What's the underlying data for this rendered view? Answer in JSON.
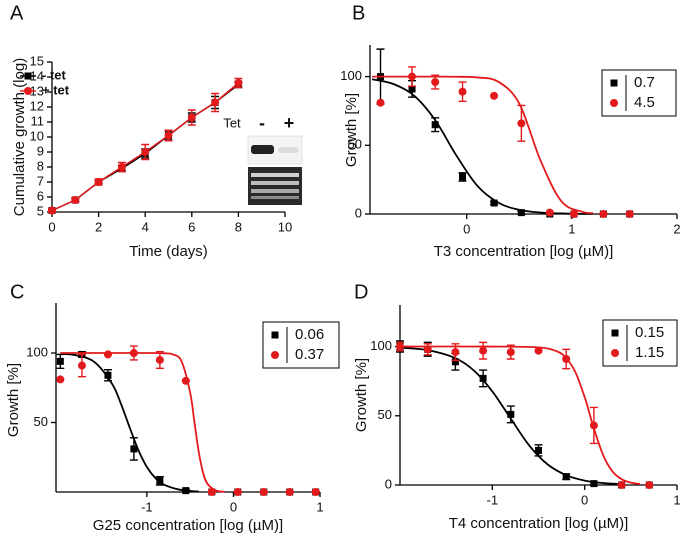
{
  "chart_data": [
    {
      "type": "line",
      "panel_label": "A",
      "x_label": "Time (days)",
      "y_label": "Cumulative growth (log)",
      "xlim": [
        0,
        10
      ],
      "xticks": [
        0,
        2,
        4,
        6,
        8,
        10
      ],
      "ylim": [
        5,
        15
      ],
      "yticks": [
        5,
        6,
        7,
        8,
        9,
        10,
        11,
        12,
        13,
        14,
        15
      ],
      "legend": "upper left",
      "annotations": [
        "Tet",
        "-",
        "+"
      ],
      "x": [
        0,
        1,
        2,
        3,
        4,
        5,
        6,
        7,
        8
      ],
      "series": [
        {
          "name": "-  tet",
          "color": "#000000",
          "marker": "square",
          "values": [
            5.1,
            5.8,
            7.0,
            7.9,
            8.9,
            10.1,
            11.3,
            12.3,
            13.5
          ],
          "errors": [
            0.1,
            0.1,
            0.1,
            0.2,
            0.3,
            0.3,
            0.3,
            0.4,
            0.2
          ]
        },
        {
          "name": "+ tet",
          "color": "#e31a1c",
          "marker": "circle",
          "values": [
            5.1,
            5.8,
            7.0,
            8.0,
            9.0,
            10.1,
            11.3,
            12.3,
            13.6
          ],
          "errors": [
            0.1,
            0.15,
            0.2,
            0.3,
            0.5,
            0.35,
            0.5,
            0.6,
            0.3
          ]
        }
      ]
    },
    {
      "type": "scatter",
      "panel_label": "B",
      "x_label": "T3 concentration [log (µM)]",
      "y_label": "Growth [%]",
      "xlim": [
        -0.92,
        2
      ],
      "xticks": [
        0,
        1,
        2
      ],
      "ylim": [
        0,
        123
      ],
      "yticks": [
        0,
        50,
        100
      ],
      "legend": "upper right",
      "x": [
        -0.82,
        -0.52,
        -0.3,
        -0.04,
        0.26,
        0.52,
        0.79,
        1.02,
        1.3,
        1.55
      ],
      "series": [
        {
          "name": "0.7",
          "color": "#000000",
          "marker": "square",
          "values": [
            100,
            91,
            65,
            27,
            8,
            1,
            0,
            0,
            0,
            0
          ],
          "errors": [
            20,
            6,
            5,
            3,
            1,
            1,
            0,
            0,
            0,
            0
          ],
          "fit": {
            "x": [
              -0.9,
              -0.7,
              -0.5,
              -0.3,
              -0.1,
              0.1,
              0.3,
              0.5,
              0.7,
              0.9,
              1.1,
              1.2
            ],
            "values": [
              98.1,
              94.7,
              86.1,
              68.3,
              42.8,
              20.6,
              8.3,
              3.0,
              1.1,
              0.4,
              0.1,
              0.1
            ]
          }
        },
        {
          "name": "4.5",
          "color": "#e31a1c",
          "marker": "circle",
          "values": [
            81,
            100,
            96,
            89,
            86,
            66,
            1,
            0,
            0,
            0
          ],
          "errors": [
            0,
            7,
            5,
            7,
            0,
            13,
            0,
            0,
            0,
            0
          ],
          "fit": {
            "x": [
              -0.9,
              -0.7,
              -0.5,
              -0.3,
              -0.1,
              0.1,
              0.3,
              0.5,
              0.7,
              0.9,
              1.1,
              1.2
            ],
            "values": [
              100,
              100,
              100,
              100,
              99.9,
              99.4,
              96.3,
              80.4,
              39.3,
              9.3,
              1.6,
              0.6
            ]
          }
        }
      ]
    },
    {
      "type": "scatter",
      "panel_label": "C",
      "x_label": "G25 concentration [log (µM)]",
      "y_label": "Growth [%]",
      "xlim": [
        -2.05,
        1
      ],
      "xticks": [
        -1,
        0,
        1
      ],
      "ylim": [
        0,
        136
      ],
      "yticks": [
        50,
        100
      ],
      "legend": "upper right",
      "x": [
        -2.0,
        -1.75,
        -1.45,
        -1.15,
        -0.85,
        -0.55,
        -0.25,
        0.05,
        0.35,
        0.65,
        0.95
      ],
      "series": [
        {
          "name": "0.06",
          "color": "#000000",
          "marker": "square",
          "values": [
            94,
            99,
            84,
            31,
            8,
            1,
            0,
            0,
            0,
            0,
            0
          ],
          "errors": [
            5,
            2,
            4,
            8,
            3,
            1,
            0,
            0,
            0,
            0,
            0
          ],
          "fit": {
            "x": [
              -2.0,
              -1.8,
              -1.6,
              -1.4,
              -1.3,
              -1.2,
              -1.1,
              -1.0,
              -0.9,
              -0.8,
              -0.6,
              -0.4
            ],
            "values": [
              99.5,
              98.2,
              93.2,
              77.6,
              63.5,
              46.6,
              30.4,
              18.0,
              9.9,
              5.2,
              1.4,
              0.3
            ]
          }
        },
        {
          "name": "0.37",
          "color": "#e31a1c",
          "marker": "circle",
          "values": [
            81,
            91,
            99,
            100,
            95,
            80,
            0,
            0,
            0,
            0,
            0
          ],
          "errors": [
            0,
            8,
            0,
            5,
            6,
            0,
            0,
            0,
            0,
            0,
            0
          ],
          "fit": {
            "x": [
              -2.0,
              -1.0,
              -0.8,
              -0.7,
              -0.6,
              -0.5,
              -0.45,
              -0.4,
              -0.35,
              -0.3,
              -0.2,
              -0.1
            ],
            "values": [
              100,
              100,
              99.8,
              99.0,
              94.1,
              71.5,
              50,
              28.5,
              13.7,
              5.9,
              1.0,
              0.2
            ]
          }
        }
      ]
    },
    {
      "type": "scatter",
      "panel_label": "D",
      "x_label": "T4 concentration [log (µM)]",
      "y_label": "Growth [%]",
      "xlim": [
        -2,
        1
      ],
      "xticks": [
        -1,
        0,
        1
      ],
      "ylim": [
        0,
        130
      ],
      "yticks": [
        0,
        50,
        100
      ],
      "legend": "upper right",
      "x": [
        -2.0,
        -1.7,
        -1.4,
        -1.1,
        -0.8,
        -0.5,
        -0.2,
        0.1,
        0.4,
        0.7
      ],
      "series": [
        {
          "name": "0.15",
          "color": "#000000",
          "marker": "square",
          "values": [
            100,
            98,
            89,
            77,
            51,
            25,
            6,
            1,
            0,
            0
          ],
          "errors": [
            4,
            5,
            6,
            6,
            6,
            4,
            2,
            1,
            0,
            0
          ],
          "fit": {
            "x": [
              -2.0,
              -1.7,
              -1.4,
              -1.2,
              -1.0,
              -0.8,
              -0.6,
              -0.4,
              -0.2,
              0,
              0.2,
              0.4
            ],
            "values": [
              99.2,
              97.4,
              91.6,
              82.7,
              67.6,
              47.9,
              28.5,
              14.8,
              7.1,
              3.2,
              1.4,
              0.6
            ]
          }
        },
        {
          "name": "1.15",
          "color": "#e31a1c",
          "marker": "circle",
          "values": [
            100,
            98,
            96,
            97,
            96,
            97,
            91,
            43,
            0,
            0
          ],
          "errors": [
            3,
            4,
            6,
            6,
            5,
            0,
            7,
            13,
            0,
            0
          ],
          "fit": {
            "x": [
              -2.0,
              -1.0,
              -0.5,
              -0.3,
              -0.2,
              -0.1,
              0,
              0.05,
              0.1,
              0.2,
              0.3,
              0.4,
              0.5,
              0.6
            ],
            "values": [
              100,
              100,
              99.4,
              96.5,
              91.6,
              81.4,
              63.5,
              52.3,
              40.9,
              21.6,
              9.9,
              4.2,
              1.7,
              0.7
            ]
          }
        }
      ]
    }
  ]
}
